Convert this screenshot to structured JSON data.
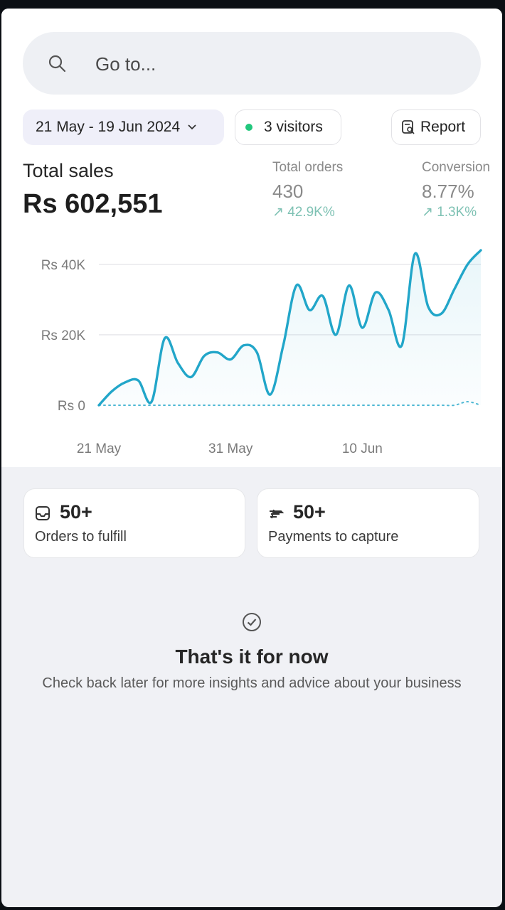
{
  "search": {
    "placeholder": "Go to..."
  },
  "filters": {
    "date_range": "21 May - 19 Jun 2024",
    "visitors": "3 visitors",
    "report_label": "Report"
  },
  "summary": {
    "total_sales_label": "Total sales",
    "total_sales_value": "Rs 602,551",
    "orders_label": "Total orders",
    "orders_value": "430",
    "orders_change": "↗ 42.9K%",
    "conversion_label": "Conversion",
    "conversion_value": "8.77%",
    "conversion_change": "↗ 1.3K%"
  },
  "chart_data": {
    "type": "line",
    "y_ticks": [
      "Rs 40K",
      "Rs 20K",
      "Rs 0"
    ],
    "x_ticks": [
      "21 May",
      "31 May",
      "10 Jun"
    ],
    "ylim": [
      0,
      44000
    ],
    "grid": true,
    "series": [
      {
        "values": [
          0,
          4000,
          6500,
          7000,
          1000,
          19000,
          12000,
          8000,
          14000,
          15000,
          13000,
          17000,
          15000,
          3000,
          17000,
          34000,
          27000,
          31000,
          20000,
          34000,
          22000,
          32000,
          27000,
          17000,
          43000,
          28000,
          26000,
          33000,
          40000,
          44000
        ],
        "color": "#22a6c9"
      },
      {
        "values": [
          0,
          0,
          0,
          0,
          0,
          0,
          0,
          0,
          0,
          0,
          0,
          0,
          0,
          0,
          0,
          0,
          0,
          0,
          0,
          0,
          0,
          0,
          0,
          0,
          0,
          0,
          0,
          0,
          1000,
          0
        ],
        "color": "#22a6c9",
        "style": "dotted"
      }
    ]
  },
  "tasks": [
    {
      "icon": "inbox-icon",
      "count": "50+",
      "label": "Orders to fulfill"
    },
    {
      "icon": "payment-icon",
      "count": "50+",
      "label": "Payments to capture"
    }
  ],
  "empty_state": {
    "icon": "check-circle-icon",
    "title": "That's it for now",
    "text": "Check back later for more insights and advice about your business"
  }
}
